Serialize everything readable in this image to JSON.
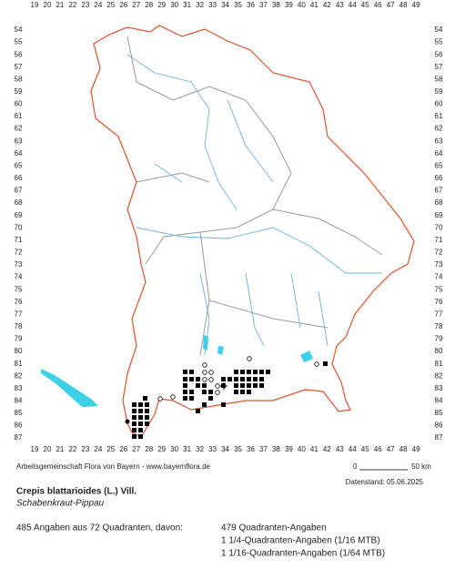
{
  "map": {
    "x_labels": [
      "19",
      "20",
      "21",
      "22",
      "23",
      "24",
      "25",
      "26",
      "27",
      "28",
      "29",
      "30",
      "31",
      "32",
      "33",
      "34",
      "35",
      "36",
      "37",
      "38",
      "39",
      "40",
      "41",
      "42",
      "43",
      "44",
      "45",
      "46",
      "47",
      "48",
      "49"
    ],
    "y_labels": [
      "54",
      "55",
      "56",
      "57",
      "58",
      "59",
      "60",
      "61",
      "62",
      "63",
      "64",
      "65",
      "66",
      "67",
      "68",
      "69",
      "70",
      "71",
      "72",
      "73",
      "74",
      "75",
      "76",
      "77",
      "78",
      "79",
      "80",
      "81",
      "82",
      "83",
      "84",
      "85",
      "86",
      "87"
    ],
    "credit": "Arbeitsgemeinschaft Flora von Bayern - www.bayernflora.de",
    "scale_start": "0",
    "scale_end": "50 km",
    "data_date": "Datenstand: 05.06.2025",
    "title": "Crepis blattarioides (L.) Vill.",
    "subtitle": "Schabenkraut-Pippau",
    "summary": "485 Angaben aus 72 Quadranten, davon:",
    "details": [
      "479 Quadranten-Angaben",
      "1 1/4-Quadranten-Angaben (1/16 MTB)",
      "1 1/16-Quadranten-Angaben (1/64 MTB)"
    ]
  }
}
